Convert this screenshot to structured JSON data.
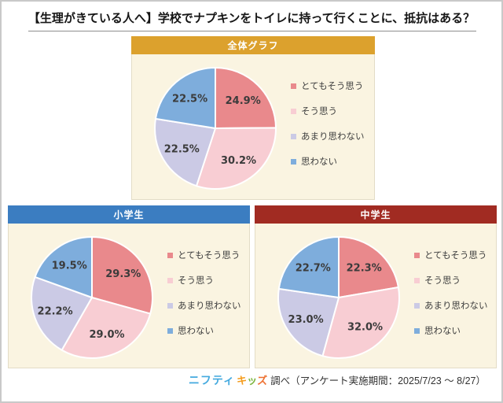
{
  "title": "【生理がきている人へ】学校でナプキンをトイレに持って行くことに、抵抗はある？",
  "series": [
    {
      "label": "とてもそう思う",
      "color": "#E9898C"
    },
    {
      "label": "そう思う",
      "color": "#F8CDD3"
    },
    {
      "label": "あまり思わない",
      "color": "#CBCAE5"
    },
    {
      "label": "思わない",
      "color": "#7EADDC"
    }
  ],
  "panel_bg": "#FAF4E1",
  "chart_data": [
    {
      "type": "pie",
      "title": "全体グラフ",
      "header_color": "#DCA12D",
      "categories": [
        "とてもそう思う",
        "そう思う",
        "あまり思わない",
        "思わない"
      ],
      "values": [
        24.9,
        30.2,
        22.5,
        22.5
      ],
      "unit": "%",
      "start_angle": "12-oclock",
      "direction": "clockwise",
      "legend_position": "right"
    },
    {
      "type": "pie",
      "title": "小学生",
      "header_color": "#3B7DC1",
      "categories": [
        "とてもそう思う",
        "そう思う",
        "あまり思わない",
        "思わない"
      ],
      "values": [
        29.3,
        29.0,
        22.2,
        19.5
      ],
      "unit": "%",
      "start_angle": "12-oclock",
      "direction": "clockwise",
      "legend_position": "right"
    },
    {
      "type": "pie",
      "title": "中学生",
      "header_color": "#A12B22",
      "categories": [
        "とてもそう思う",
        "そう思う",
        "あまり思わない",
        "思わない"
      ],
      "values": [
        22.3,
        32.0,
        23.0,
        22.7
      ],
      "unit": "%",
      "start_angle": "12-oclock",
      "direction": "clockwise",
      "legend_position": "right"
    }
  ],
  "footer": {
    "logo_parts": [
      {
        "text": "ニフティ",
        "color": "#45AADF"
      },
      {
        "text": "キ",
        "color": "#F59C1C"
      },
      {
        "text": "ッ",
        "color": "#7CB53E"
      },
      {
        "text": "ズ",
        "color": "#EE7030"
      }
    ],
    "survey_text": "調べ（アンケート実施期間：2025/7/23 ～ 8/27）"
  }
}
